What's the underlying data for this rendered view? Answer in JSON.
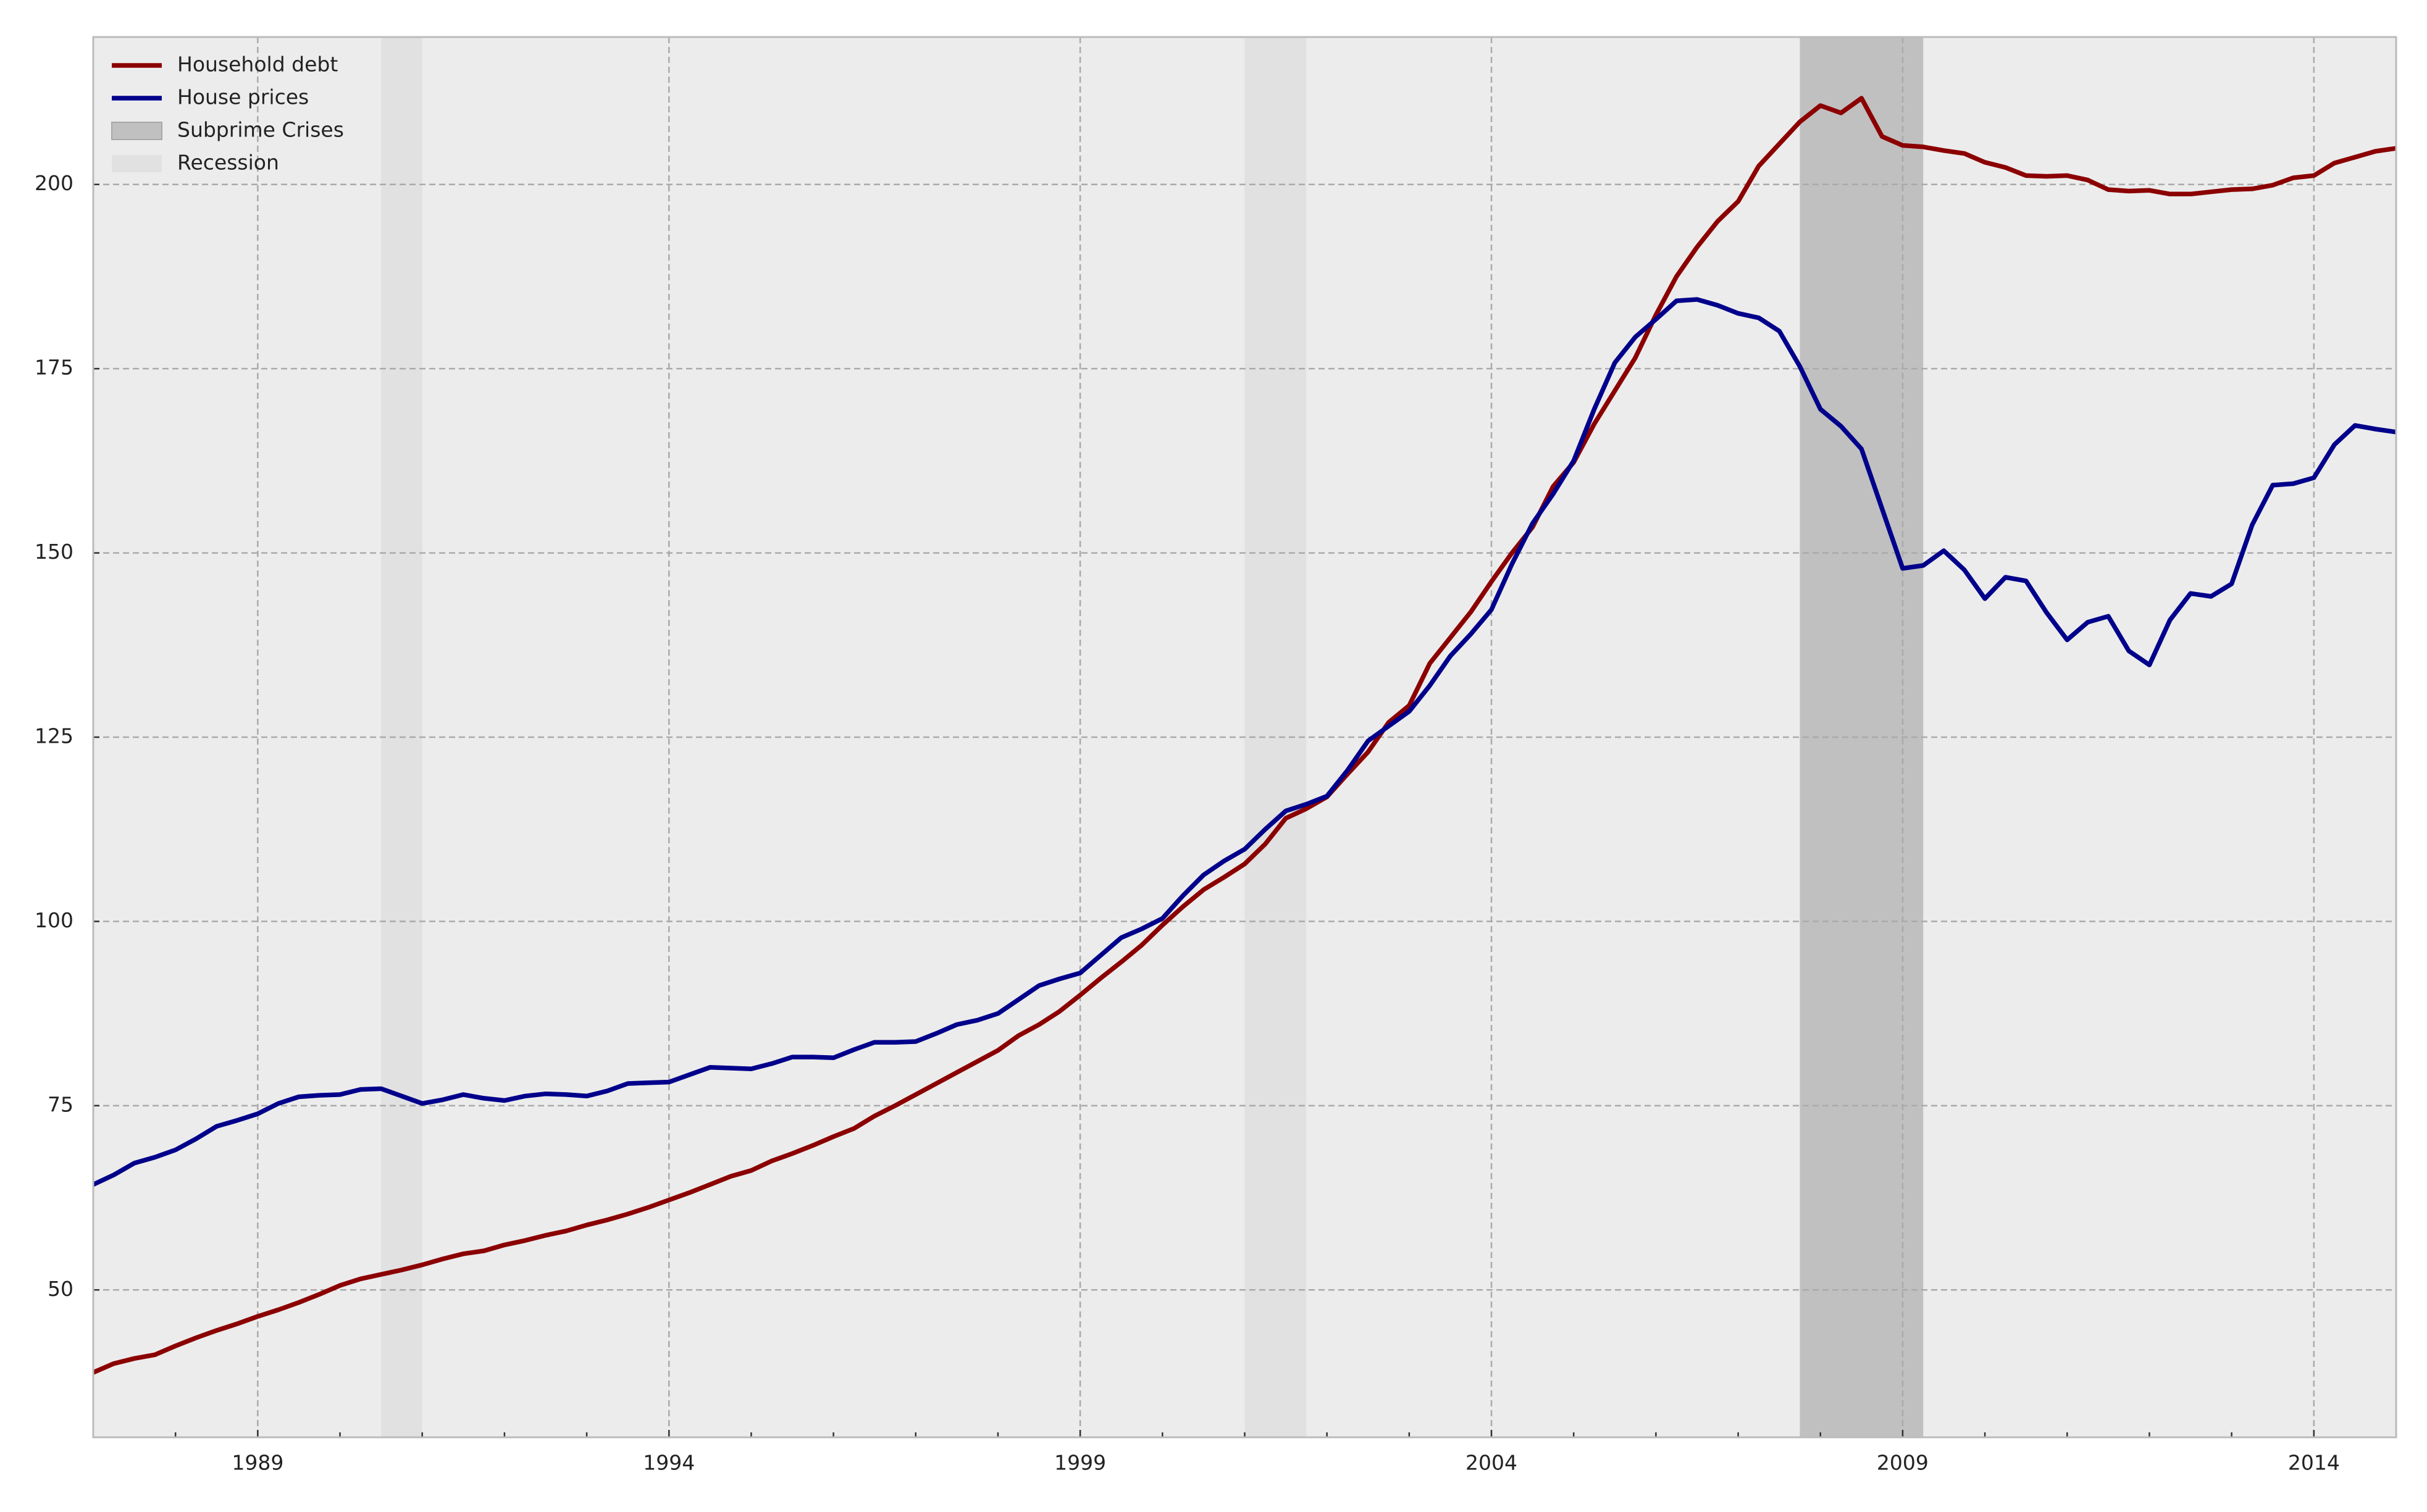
{
  "chart_data": {
    "type": "line",
    "x": [
      1987,
      1987.25,
      1987.5,
      1987.75,
      1988,
      1988.25,
      1988.5,
      1988.75,
      1989,
      1989.25,
      1989.5,
      1989.75,
      1990,
      1990.25,
      1990.5,
      1990.75,
      1991,
      1991.25,
      1991.5,
      1991.75,
      1992,
      1992.25,
      1992.5,
      1992.75,
      1993,
      1993.25,
      1993.5,
      1993.75,
      1994,
      1994.25,
      1994.5,
      1994.75,
      1995,
      1995.25,
      1995.5,
      1995.75,
      1996,
      1996.25,
      1996.5,
      1996.75,
      1997,
      1997.25,
      1997.5,
      1997.75,
      1998,
      1998.25,
      1998.5,
      1998.75,
      1999,
      1999.25,
      1999.5,
      1999.75,
      2000,
      2000.25,
      2000.5,
      2000.75,
      2001,
      2001.25,
      2001.5,
      2001.75,
      2002,
      2002.25,
      2002.5,
      2002.75,
      2003,
      2003.25,
      2003.5,
      2003.75,
      2004,
      2004.25,
      2004.5,
      2004.75,
      2005,
      2005.25,
      2005.5,
      2005.75,
      2006,
      2006.25,
      2006.5,
      2006.75,
      2007,
      2007.25,
      2007.5,
      2007.75,
      2008,
      2008.25,
      2008.5,
      2008.75,
      2009,
      2009.25,
      2009.5,
      2009.75,
      2010,
      2010.25,
      2010.5,
      2010.75,
      2011,
      2011.25,
      2011.5,
      2011.75,
      2012,
      2012.25,
      2012.5,
      2012.75,
      2013,
      2013.25,
      2013.5,
      2013.75,
      2014,
      2014.25,
      2014.5,
      2014.75,
      2015
    ],
    "series": [
      {
        "name": "Household debt",
        "color": "#8b0000",
        "values": [
          38.8,
          40,
          40.7,
          41.2,
          42.4,
          43.5,
          44.5,
          45.4,
          46.4,
          47.3,
          48.3,
          49.4,
          50.6,
          51.5,
          52.1,
          52.7,
          53.4,
          54.2,
          54.9,
          55.3,
          56.1,
          56.7,
          57.4,
          58.0,
          58.8,
          59.5,
          60.3,
          61.2,
          62.2,
          63.2,
          64.3,
          65.4,
          66.2,
          67.5,
          68.5,
          69.6,
          70.8,
          71.9,
          73.6,
          75.0,
          76.5,
          78.0,
          79.5,
          81.0,
          82.5,
          84.5,
          86.0,
          87.8,
          90.0,
          92.3,
          94.5,
          96.8,
          99.5,
          102,
          104.3,
          106.0,
          107.8,
          110.5,
          114,
          115.3,
          116.9,
          120,
          123,
          127,
          129.3,
          135,
          138.5,
          142,
          146.1,
          150,
          153.5,
          159,
          162.3,
          167.5,
          172,
          176.5,
          182.3,
          187.5,
          191.5,
          195,
          197.7,
          202.5,
          205.5,
          208.5,
          210.7,
          209.7,
          211.7,
          206.5,
          205.3,
          205.1,
          204.6,
          204.2,
          203.0,
          202.3,
          201.2,
          201.1,
          201.2,
          200.6,
          199.3,
          199.1,
          199.2,
          198.7,
          198.7,
          199.0,
          199.3,
          199.4,
          199.9,
          200.9,
          201.2,
          202.9,
          203.7,
          204.5,
          204.9
        ]
      },
      {
        "name": "House prices",
        "color": "#00008b",
        "values": [
          64.3,
          65.6,
          67.2,
          68.0,
          69.0,
          70.5,
          72.2,
          73.0,
          73.9,
          75.3,
          76.2,
          76.4,
          76.5,
          77.2,
          77.3,
          76.3,
          75.3,
          75.8,
          76.5,
          76.0,
          75.7,
          76.3,
          76.6,
          76.5,
          76.3,
          77.0,
          78.0,
          78.1,
          78.2,
          79.2,
          80.2,
          80.1,
          80.0,
          80.7,
          81.6,
          81.6,
          81.5,
          82.6,
          83.6,
          83.6,
          83.7,
          84.8,
          86.0,
          86.6,
          87.5,
          89.4,
          91.3,
          92.2,
          93.0,
          95.4,
          97.8,
          99.0,
          100.4,
          103.5,
          106.3,
          108.2,
          109.8,
          112.5,
          115.0,
          115.9,
          117.0,
          120.5,
          124.5,
          126.5,
          128.5,
          132,
          136,
          139,
          142.3,
          148.5,
          154,
          158,
          162.5,
          169.5,
          175.8,
          179.3,
          181.7,
          184.2,
          184.4,
          183.6,
          182.5,
          181.9,
          180.1,
          175.3,
          169.5,
          167.2,
          164.1,
          156,
          147.9,
          148.3,
          150.3,
          147.7,
          143.8,
          146.7,
          146.2,
          141.9,
          138.2,
          140.6,
          141.4,
          136.7,
          134.8,
          140.9,
          144.5,
          144.1,
          145.8,
          153.8,
          159.2,
          159.4,
          160.2,
          164.7,
          167.3,
          166.8,
          166.4
        ]
      }
    ],
    "bands": [
      {
        "name": "Subprime Crises",
        "color": "#c0c0c0",
        "ranges": [
          [
            2007.75,
            2009.25
          ]
        ]
      },
      {
        "name": "Recession",
        "color": "#e1e1e1",
        "ranges": [
          [
            1990.5,
            1991.0
          ],
          [
            2001.0,
            2001.75
          ]
        ]
      }
    ],
    "xlim": [
      1987,
      2015
    ],
    "ylim": [
      30,
      220
    ],
    "xticks": [
      1989,
      1994,
      1999,
      2004,
      2009,
      2014
    ],
    "xminorticks": [
      1988,
      1990,
      1991,
      1992,
      1993,
      1995,
      1996,
      1997,
      1998,
      2000,
      2001,
      2002,
      2003,
      2005,
      2006,
      2007,
      2008,
      2010,
      2011,
      2012,
      2013
    ],
    "yticks": [
      50,
      75,
      100,
      125,
      150,
      175,
      200
    ],
    "grid": true,
    "legend": "upper left"
  }
}
